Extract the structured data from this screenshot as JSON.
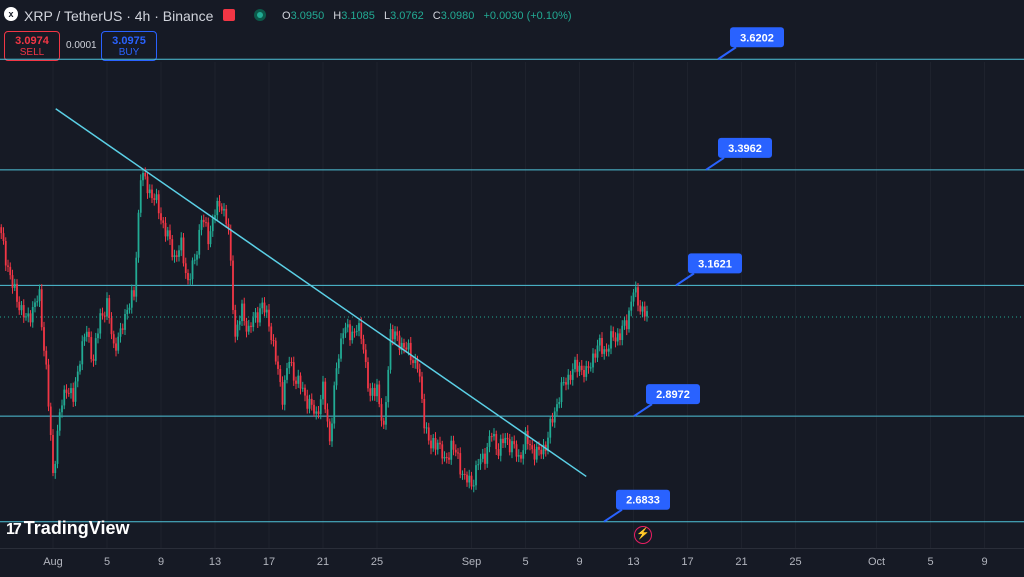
{
  "header": {
    "icon": "x",
    "symbol": "XRP / TetherUS · 4h · Binance",
    "ohlc": {
      "o_label": "O",
      "o": "3.0950",
      "h_label": "H",
      "h": "3.1085",
      "l_label": "L",
      "l": "3.0762",
      "c_label": "C",
      "c": "3.0980",
      "change": "+0.0030 (+0.10%)"
    }
  },
  "trade": {
    "sell_price": "3.0974",
    "sell_label": "SELL",
    "spread": "0.0001",
    "buy_price": "3.0975",
    "buy_label": "BUY"
  },
  "branding": {
    "logo": "TradingView"
  },
  "colors": {
    "background": "#161a25",
    "up": "#22ab94",
    "down": "#f23645",
    "level_line": "#4fc3d9",
    "trendline": "#5bd0e6",
    "callout": "#2962ff"
  },
  "chart_data": {
    "type": "candlestick",
    "title": "",
    "ylim": [
      2.63,
      3.72
    ],
    "x_ticks": [
      "Aug",
      "5",
      "9",
      "13",
      "17",
      "21",
      "25",
      "Sep",
      "5",
      "9",
      "13",
      "17",
      "21",
      "25",
      "Oct",
      "5",
      "9"
    ],
    "x_tick_days": [
      1,
      5,
      9,
      13,
      17,
      21,
      25,
      32,
      36,
      40,
      44,
      48,
      52,
      56,
      62,
      66,
      70
    ],
    "start_day": -3,
    "horizontal_levels": [
      {
        "value": 3.6202,
        "label": "3.6202"
      },
      {
        "value": 3.3962,
        "label": "3.3962"
      },
      {
        "value": 3.1621,
        "label": "3.1621"
      },
      {
        "value": 2.8972,
        "label": "2.8972"
      },
      {
        "value": 2.6833,
        "label": "2.6833"
      }
    ],
    "current_price": 3.098,
    "trendline": [
      {
        "day": 1.2,
        "value": 3.52
      },
      {
        "day": 40.5,
        "value": 2.775
      }
    ],
    "close_path": [
      [
        -3,
        3.28
      ],
      [
        -2,
        3.16
      ],
      [
        -1,
        3.09
      ],
      [
        0,
        3.14
      ],
      [
        0.5,
        2.99
      ],
      [
        1,
        2.78
      ],
      [
        1.5,
        2.9
      ],
      [
        2,
        2.96
      ],
      [
        2.5,
        2.93
      ],
      [
        3,
        3.02
      ],
      [
        3.5,
        3.07
      ],
      [
        4,
        3.01
      ],
      [
        4.5,
        3.1
      ],
      [
        5,
        3.12
      ],
      [
        5.5,
        3.04
      ],
      [
        6,
        3.06
      ],
      [
        6.5,
        3.12
      ],
      [
        7,
        3.14
      ],
      [
        7.5,
        3.39
      ],
      [
        8,
        3.36
      ],
      [
        8.5,
        3.34
      ],
      [
        9,
        3.3
      ],
      [
        9.5,
        3.26
      ],
      [
        10,
        3.22
      ],
      [
        10.5,
        3.24
      ],
      [
        11,
        3.17
      ],
      [
        11.5,
        3.21
      ],
      [
        12,
        3.3
      ],
      [
        12.5,
        3.26
      ],
      [
        13,
        3.31
      ],
      [
        13.5,
        3.33
      ],
      [
        14,
        3.27
      ],
      [
        14.5,
        3.06
      ],
      [
        15,
        3.11
      ],
      [
        15.5,
        3.07
      ],
      [
        16,
        3.1
      ],
      [
        16.5,
        3.12
      ],
      [
        17,
        3.09
      ],
      [
        17.5,
        3.01
      ],
      [
        18,
        2.94
      ],
      [
        18.5,
        3.01
      ],
      [
        19,
        2.97
      ],
      [
        19.5,
        2.95
      ],
      [
        20,
        2.92
      ],
      [
        20.5,
        2.9
      ],
      [
        21,
        2.95
      ],
      [
        21.5,
        2.85
      ],
      [
        22,
        2.99
      ],
      [
        22.5,
        3.08
      ],
      [
        23,
        3.06
      ],
      [
        23.5,
        3.08
      ],
      [
        24,
        3.04
      ],
      [
        24.5,
        2.93
      ],
      [
        25,
        2.96
      ],
      [
        25.5,
        2.86
      ],
      [
        26,
        3.07
      ],
      [
        26.5,
        3.05
      ],
      [
        27,
        3.04
      ],
      [
        27.5,
        3.02
      ],
      [
        28,
        3.0
      ],
      [
        28.5,
        2.89
      ],
      [
        29,
        2.83
      ],
      [
        29.5,
        2.85
      ],
      [
        30,
        2.8
      ],
      [
        30.5,
        2.84
      ],
      [
        31,
        2.81
      ],
      [
        31.5,
        2.77
      ],
      [
        32,
        2.76
      ],
      [
        32.5,
        2.8
      ],
      [
        33,
        2.82
      ],
      [
        33.5,
        2.86
      ],
      [
        34,
        2.83
      ],
      [
        34.5,
        2.85
      ],
      [
        35,
        2.84
      ],
      [
        35.5,
        2.81
      ],
      [
        36,
        2.85
      ],
      [
        36.5,
        2.83
      ],
      [
        37,
        2.82
      ],
      [
        37.5,
        2.84
      ],
      [
        38,
        2.89
      ],
      [
        38.5,
        2.94
      ],
      [
        39,
        2.97
      ],
      [
        39.5,
        2.99
      ],
      [
        40,
        3.0
      ],
      [
        40.5,
        2.98
      ],
      [
        41,
        3.02
      ],
      [
        41.5,
        3.04
      ],
      [
        42,
        3.03
      ],
      [
        42.5,
        3.06
      ],
      [
        43,
        3.06
      ],
      [
        43.5,
        3.09
      ],
      [
        44,
        3.15
      ],
      [
        44.5,
        3.12
      ],
      [
        45,
        3.098
      ]
    ]
  }
}
